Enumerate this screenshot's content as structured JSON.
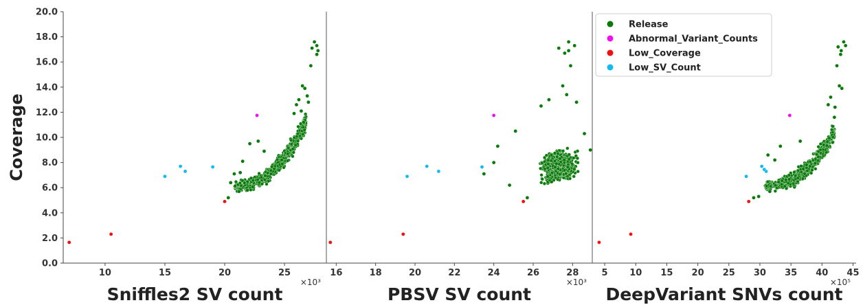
{
  "chart_data": {
    "type": "scatter",
    "ylabel": "Coverage",
    "ylim": [
      0,
      20
    ],
    "yticks": [
      "0.0",
      "2.0",
      "4.0",
      "6.0",
      "8.0",
      "10.0",
      "12.0",
      "14.0",
      "16.0",
      "18.0",
      "20.0"
    ],
    "colors": {
      "Release": "#0a7a0a",
      "Abnormal_Variant_Counts": "#ee11ee",
      "Low_Coverage": "#ee1111",
      "Low_SV_Count": "#11bbee"
    },
    "legend": {
      "position": "top-right of third panel",
      "entries": [
        "Release",
        "Abnormal_Variant_Counts",
        "Low_Coverage",
        "Low_SV_Count"
      ]
    },
    "panels": [
      {
        "xlabel": "Sniffles2 SV count",
        "multiplier": "×10³",
        "xlim": [
          6.5,
          28.5
        ],
        "xticks": [
          10,
          15,
          20,
          25
        ],
        "outliers": [
          {
            "category": "Low_Coverage",
            "x": 7.0,
            "y": 1.65
          },
          {
            "category": "Low_Coverage",
            "x": 10.5,
            "y": 2.3
          },
          {
            "category": "Low_Coverage",
            "x": 20.0,
            "y": 4.9
          },
          {
            "category": "Low_SV_Count",
            "x": 15.0,
            "y": 6.9
          },
          {
            "category": "Low_SV_Count",
            "x": 16.3,
            "y": 7.7
          },
          {
            "category": "Low_SV_Count",
            "x": 16.7,
            "y": 7.3
          },
          {
            "category": "Low_SV_Count",
            "x": 19.0,
            "y": 7.65
          },
          {
            "category": "Abnormal_Variant_Counts",
            "x": 22.7,
            "y": 11.75
          }
        ],
        "release_points": [
          [
            27.5,
            17.6
          ],
          [
            27.7,
            17.3
          ],
          [
            27.3,
            17.1
          ],
          [
            27.8,
            16.9
          ],
          [
            27.7,
            16.6
          ],
          [
            27.2,
            15.7
          ],
          [
            26.5,
            14.1
          ],
          [
            26.7,
            13.9
          ],
          [
            26.9,
            13.3
          ],
          [
            27.0,
            12.8
          ],
          [
            26.2,
            13.0
          ],
          [
            26.0,
            12.6
          ],
          [
            26.4,
            12.1
          ],
          [
            26.6,
            11.2
          ],
          [
            25.8,
            11.9
          ],
          [
            21.5,
            8.1
          ],
          [
            21.3,
            7.2
          ],
          [
            20.8,
            7.1
          ],
          [
            20.5,
            6.4
          ],
          [
            20.3,
            5.2
          ],
          [
            21.2,
            5.7
          ],
          [
            21.9,
            5.8
          ],
          [
            22.1,
            9.5
          ],
          [
            22.8,
            9.7
          ],
          [
            23.3,
            8.9
          ]
        ],
        "release_cloud": {
          "x_range": [
            20.8,
            26.8
          ],
          "y_range": [
            5.6,
            12.3
          ],
          "trend": "upward-curving"
        }
      },
      {
        "xlabel": "PBSV SV count",
        "multiplier": "×10³",
        "xlim": [
          15.5,
          29.0
        ],
        "xticks": [
          16,
          18,
          20,
          22,
          24,
          26,
          28
        ],
        "outliers": [
          {
            "category": "Low_Coverage",
            "x": 15.7,
            "y": 1.65
          },
          {
            "category": "Low_Coverage",
            "x": 19.4,
            "y": 2.3
          },
          {
            "category": "Low_Coverage",
            "x": 25.5,
            "y": 4.9
          },
          {
            "category": "Low_SV_Count",
            "x": 19.6,
            "y": 6.9
          },
          {
            "category": "Low_SV_Count",
            "x": 20.6,
            "y": 7.7
          },
          {
            "category": "Low_SV_Count",
            "x": 21.2,
            "y": 7.3
          },
          {
            "category": "Low_SV_Count",
            "x": 23.4,
            "y": 7.65
          },
          {
            "category": "Abnormal_Variant_Counts",
            "x": 24.0,
            "y": 11.75
          }
        ],
        "release_points": [
          [
            27.8,
            17.6
          ],
          [
            28.1,
            17.3
          ],
          [
            27.3,
            17.1
          ],
          [
            27.8,
            16.9
          ],
          [
            27.6,
            16.7
          ],
          [
            27.9,
            15.7
          ],
          [
            27.5,
            14.1
          ],
          [
            27.7,
            13.4
          ],
          [
            26.8,
            13.0
          ],
          [
            28.2,
            12.8
          ],
          [
            28.6,
            10.3
          ],
          [
            23.5,
            7.1
          ],
          [
            24.2,
            9.3
          ],
          [
            25.7,
            5.2
          ],
          [
            24.8,
            6.2
          ],
          [
            25.1,
            10.5
          ],
          [
            26.4,
            12.5
          ],
          [
            28.9,
            9.0
          ],
          [
            24.0,
            8.0
          ]
        ],
        "release_cloud": {
          "x_range": [
            24.6,
            28.8
          ],
          "y_range": [
            5.4,
            13.0
          ],
          "trend": "dense vertical cluster"
        }
      },
      {
        "xlabel": "DeepVariant SNVs count",
        "multiplier": "×10⁵",
        "xlim": [
          3.0,
          45.5
        ],
        "xticks": [
          5,
          10,
          15,
          20,
          25,
          30,
          35,
          40,
          45
        ],
        "outliers": [
          {
            "category": "Low_Coverage",
            "x": 4.1,
            "y": 1.65
          },
          {
            "category": "Low_Coverage",
            "x": 9.2,
            "y": 2.3
          },
          {
            "category": "Low_Coverage",
            "x": 28.2,
            "y": 4.9
          },
          {
            "category": "Low_SV_Count",
            "x": 27.8,
            "y": 6.9
          },
          {
            "category": "Low_SV_Count",
            "x": 30.3,
            "y": 7.7
          },
          {
            "category": "Low_SV_Count",
            "x": 31.0,
            "y": 7.3
          },
          {
            "category": "Low_SV_Count",
            "x": 30.7,
            "y": 7.45
          },
          {
            "category": "Abnormal_Variant_Counts",
            "x": 34.8,
            "y": 11.75
          }
        ],
        "release_points": [
          [
            43.5,
            17.6
          ],
          [
            43.8,
            17.3
          ],
          [
            42.6,
            17.2
          ],
          [
            43.1,
            16.9
          ],
          [
            43.0,
            16.6
          ],
          [
            42.4,
            15.7
          ],
          [
            42.8,
            14.1
          ],
          [
            43.2,
            13.9
          ],
          [
            41.4,
            13.2
          ],
          [
            41.0,
            12.6
          ],
          [
            42.1,
            12.4
          ],
          [
            42.0,
            11.6
          ],
          [
            29.0,
            5.2
          ],
          [
            29.8,
            5.3
          ],
          [
            31.6,
            5.7
          ],
          [
            32.4,
            8.2
          ],
          [
            31.3,
            8.6
          ],
          [
            33.3,
            9.3
          ],
          [
            36.5,
            9.7
          ]
        ],
        "release_cloud": {
          "x_range": [
            30.8,
            42.0
          ],
          "y_range": [
            5.6,
            11.5
          ],
          "trend": "upward-curving"
        }
      }
    ]
  }
}
